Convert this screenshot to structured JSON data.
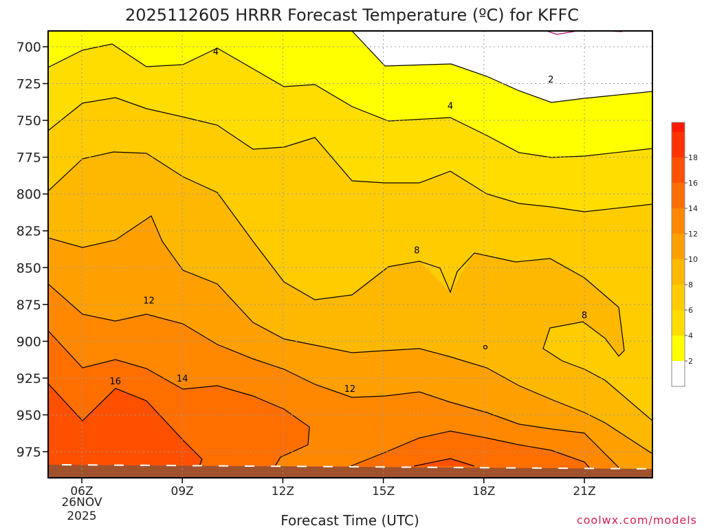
{
  "chart_data": {
    "type": "contour",
    "title": "2025112605 HRRR Forecast Temperature (ºC) for KFFC",
    "xlabel": "Forecast Time (UTC)",
    "ylabel": "",
    "watermark": "coolwx.com/models",
    "date_label": [
      "26NOV",
      "2025"
    ],
    "x_ticks": [
      "06Z",
      "09Z",
      "12Z",
      "15Z",
      "18Z",
      "21Z"
    ],
    "x_range": [
      "05Z",
      "23Z"
    ],
    "y_ticks": [
      700,
      725,
      750,
      775,
      800,
      825,
      850,
      875,
      900,
      925,
      950,
      975
    ],
    "y_range_hpa": [
      690,
      990
    ],
    "y_scale": "pressure (decreasing upward)",
    "grid": "dotted",
    "colorbar": {
      "labels": [
        "2",
        "4",
        "6",
        "8",
        "10",
        "12",
        "14",
        "16",
        "18"
      ],
      "colors": [
        "#ffffff",
        "#ffff00",
        "#ffdd00",
        "#ffcc00",
        "#ffb800",
        "#ffa000",
        "#ff8800",
        "#ff6f00",
        "#ff5000",
        "#ff3300"
      ],
      "top_color": "#ff1a00"
    },
    "contour_labels": [
      {
        "text": "2",
        "time": "20Z",
        "hpa": 722
      },
      {
        "text": "4",
        "time": "10Z",
        "hpa": 703
      },
      {
        "text": "4",
        "time": "17Z",
        "hpa": 740
      },
      {
        "text": "8",
        "time": "16Z",
        "hpa": 838
      },
      {
        "text": "8",
        "time": "21Z",
        "hpa": 882
      },
      {
        "text": "12",
        "time": "08Z",
        "hpa": 872
      },
      {
        "text": "12",
        "time": "14Z",
        "hpa": 932
      },
      {
        "text": "14",
        "time": "09Z",
        "hpa": 925
      },
      {
        "text": "16",
        "time": "07Z",
        "hpa": 927
      }
    ]
  }
}
